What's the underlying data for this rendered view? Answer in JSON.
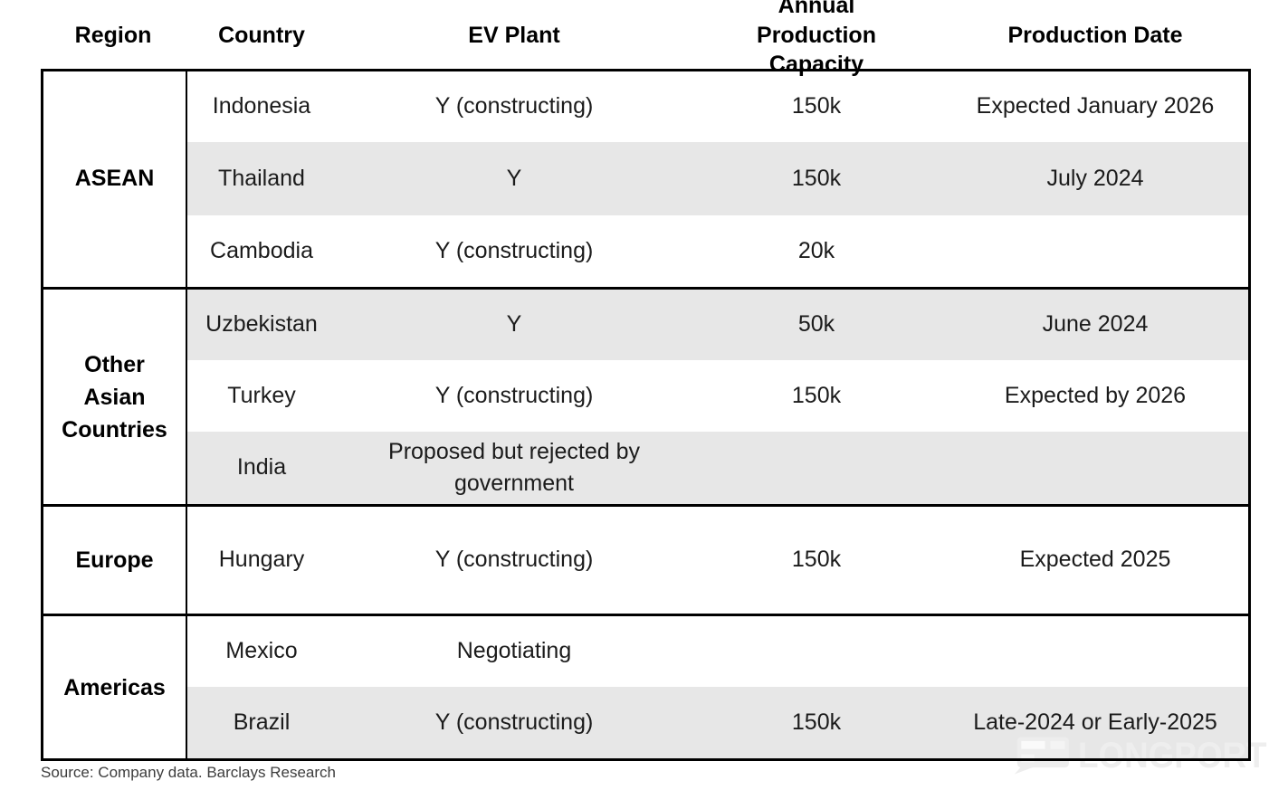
{
  "chart_data": {
    "type": "table",
    "columns": [
      "Region",
      "Country",
      "EV Plant",
      "Annual Production Capacity",
      "Production Date"
    ],
    "groups": [
      {
        "region": "ASEAN",
        "rows": [
          {
            "country": "Indonesia",
            "ev_plant": "Y (constructing)",
            "capacity": "150k",
            "production_date": "Expected January 2026",
            "shaded": false
          },
          {
            "country": "Thailand",
            "ev_plant": "Y",
            "capacity": "150k",
            "production_date": "July 2024",
            "shaded": true
          },
          {
            "country": "Cambodia",
            "ev_plant": "Y (constructing)",
            "capacity": "20k",
            "production_date": "",
            "shaded": false
          }
        ]
      },
      {
        "region": "Other Asian Countries",
        "rows": [
          {
            "country": "Uzbekistan",
            "ev_plant": "Y",
            "capacity": "50k",
            "production_date": "June 2024",
            "shaded": true
          },
          {
            "country": "Turkey",
            "ev_plant": "Y (constructing)",
            "capacity": "150k",
            "production_date": "Expected by 2026",
            "shaded": false
          },
          {
            "country": "India",
            "ev_plant": "Proposed but rejected by government",
            "capacity": "",
            "production_date": "",
            "shaded": true
          }
        ]
      },
      {
        "region": "Europe",
        "rows": [
          {
            "country": "Hungary",
            "ev_plant": "Y (constructing)",
            "capacity": "150k",
            "production_date": "Expected 2025",
            "shaded": false
          }
        ]
      },
      {
        "region": "Americas",
        "rows": [
          {
            "country": "Mexico",
            "ev_plant": "Negotiating",
            "capacity": "",
            "production_date": "",
            "shaded": false
          },
          {
            "country": "Brazil",
            "ev_plant": "Y (constructing)",
            "capacity": "150k",
            "production_date": "Late-2024 or Early-2025",
            "shaded": true
          }
        ]
      }
    ]
  },
  "source_note": "Source: Company data. Barclays  Research",
  "watermark": {
    "text": "LONGPORT",
    "logo": "longport-speech-bubble-logo"
  },
  "colors": {
    "stripe": "#e7e7e7",
    "border": "#000000",
    "text": "#1b1b1b",
    "source_text": "#3d3d3d",
    "watermark": "#eeeeee"
  }
}
